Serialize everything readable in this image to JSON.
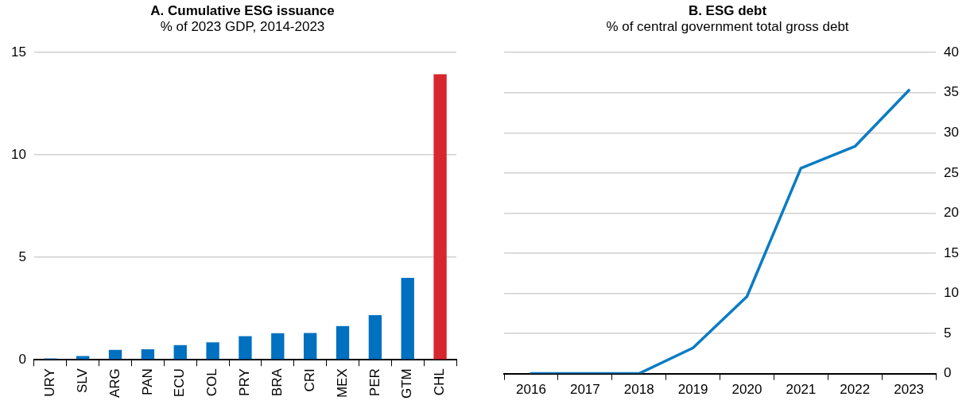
{
  "chart_data": [
    {
      "type": "bar",
      "title": "A. Cumulative ESG issuance",
      "subtitle": "% of 2023 GDP, 2014-2023",
      "categories": [
        "URY",
        "SLV",
        "ARG",
        "PAN",
        "ECU",
        "COL",
        "PRY",
        "BRA",
        "CRI",
        "MEX",
        "PER",
        "GTM",
        "CHL"
      ],
      "values": [
        0.07,
        0.18,
        0.48,
        0.51,
        0.72,
        0.85,
        1.15,
        1.3,
        1.31,
        1.65,
        2.18,
        4.0,
        13.94
      ],
      "colors": [
        "#0070c0",
        "#0070c0",
        "#0070c0",
        "#0070c0",
        "#0070c0",
        "#0070c0",
        "#0070c0",
        "#0070c0",
        "#0070c0",
        "#0070c0",
        "#0070c0",
        "#0070c0",
        "#d7262e"
      ],
      "ylim": [
        0,
        15
      ],
      "yticks": [
        0,
        5,
        10,
        15
      ],
      "grid": "y",
      "legend": false
    },
    {
      "type": "line",
      "title": "B. ESG debt",
      "subtitle": "% of central government total gross debt",
      "categories": [
        "2016",
        "2017",
        "2018",
        "2019",
        "2020",
        "2021",
        "2022",
        "2023"
      ],
      "series": [
        {
          "color": "#0a7cc4",
          "values": [
            0,
            0,
            0,
            3.2,
            9.6,
            25.6,
            28.3,
            35.3
          ]
        }
      ],
      "ylim": [
        0,
        40
      ],
      "yticks": [
        0,
        5,
        10,
        15,
        20,
        25,
        30,
        35,
        40
      ],
      "grid": "y",
      "legend": false,
      "marker": "none",
      "line_style": "solid"
    }
  ]
}
